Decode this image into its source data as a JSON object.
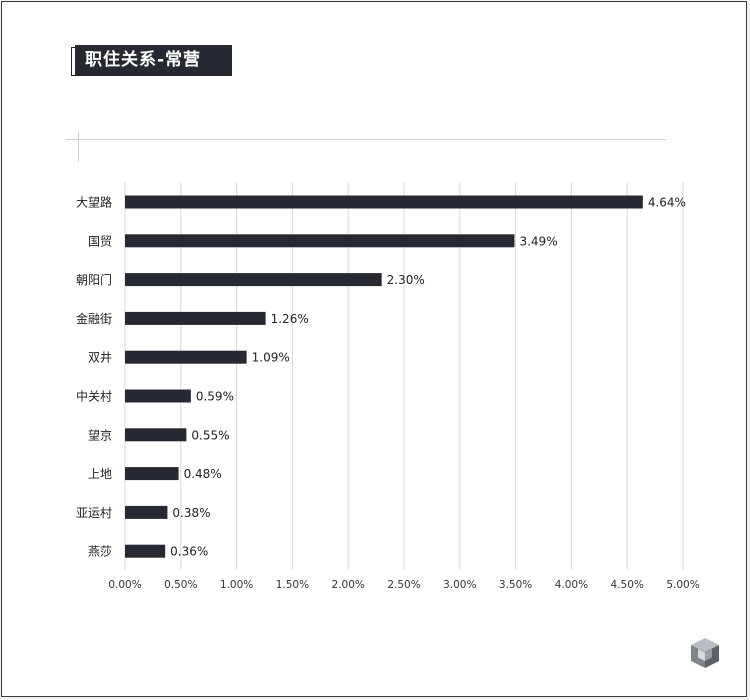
{
  "header": {
    "title": "职住关系-常营"
  },
  "chart_data": {
    "type": "bar",
    "orientation": "horizontal",
    "title": "职住关系-常营",
    "xlabel": "",
    "ylabel": "",
    "categories": [
      "大望路",
      "国贸",
      "朝阳门",
      "金融街",
      "双井",
      "中关村",
      "望京",
      "上地",
      "亚运村",
      "燕莎"
    ],
    "values": [
      4.64,
      3.49,
      2.3,
      1.26,
      1.09,
      0.59,
      0.55,
      0.48,
      0.38,
      0.36
    ],
    "value_labels": [
      "4.64%",
      "3.49%",
      "2.30%",
      "1.26%",
      "1.09%",
      "0.59%",
      "0.55%",
      "0.48%",
      "0.38%",
      "0.36%"
    ],
    "xlim": [
      0,
      5
    ],
    "x_ticks": [
      "0.00%",
      "0.50%",
      "1.00%",
      "1.50%",
      "2.00%",
      "2.50%",
      "3.00%",
      "3.50%",
      "4.00%",
      "4.50%",
      "5.00%"
    ],
    "grid": "vertical",
    "bar_color": "#262931",
    "grid_color": "#d9d9d9"
  }
}
